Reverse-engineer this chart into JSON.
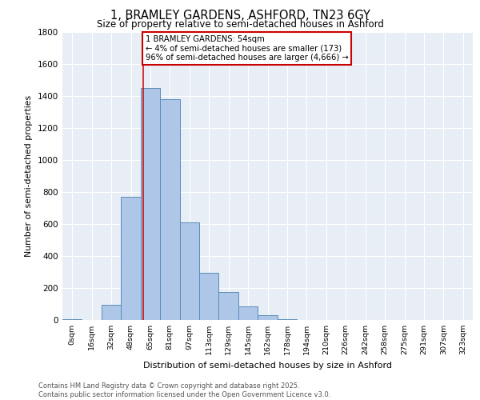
{
  "title1": "1, BRAMLEY GARDENS, ASHFORD, TN23 6GY",
  "title2": "Size of property relative to semi-detached houses in Ashford",
  "xlabel": "Distribution of semi-detached houses by size in Ashford",
  "ylabel": "Number of semi-detached properties",
  "bar_labels": [
    "0sqm",
    "16sqm",
    "32sqm",
    "48sqm",
    "65sqm",
    "81sqm",
    "97sqm",
    "113sqm",
    "129sqm",
    "145sqm",
    "162sqm",
    "178sqm",
    "194sqm",
    "210sqm",
    "226sqm",
    "242sqm",
    "258sqm",
    "275sqm",
    "291sqm",
    "307sqm",
    "323sqm"
  ],
  "bar_values": [
    5,
    0,
    95,
    770,
    1450,
    1380,
    610,
    295,
    175,
    85,
    28,
    5,
    2,
    1,
    0,
    0,
    0,
    0,
    0,
    0,
    0
  ],
  "bar_color": "#aec6e8",
  "bar_edge_color": "#5b8db8",
  "annotation_text": "1 BRAMLEY GARDENS: 54sqm\n← 4% of semi-detached houses are smaller (173)\n96% of semi-detached houses are larger (4,666) →",
  "vline_x": 3.62,
  "vline_color": "#cc0000",
  "annotation_box_edge": "#cc0000",
  "background_color": "#e8eef5",
  "footer_text": "Contains HM Land Registry data © Crown copyright and database right 2025.\nContains public sector information licensed under the Open Government Licence v3.0.",
  "ylim": [
    0,
    1800
  ],
  "yticks": [
    0,
    200,
    400,
    600,
    800,
    1000,
    1200,
    1400,
    1600,
    1800
  ]
}
